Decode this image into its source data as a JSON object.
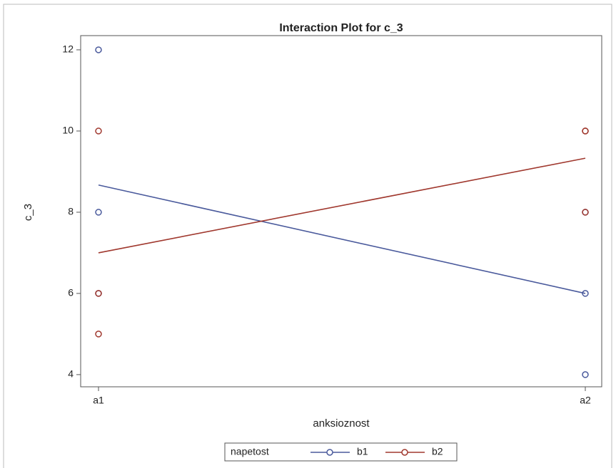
{
  "chart_data": {
    "type": "interaction",
    "title": "Interaction Plot for c_3",
    "x_label": "anksioznost",
    "y_label": "c_3",
    "categories": [
      "a1",
      "a2"
    ],
    "series": [
      {
        "name": "b1",
        "color": "#4a5a9c",
        "values": [
          8.67,
          6
        ],
        "observations": [
          [
            12,
            8,
            6
          ],
          [
            8,
            6,
            4
          ]
        ]
      },
      {
        "name": "b2",
        "color": "#a0382e",
        "values": [
          7,
          9.33
        ],
        "observations": [
          [
            10,
            6,
            5
          ],
          [
            10,
            10,
            8
          ]
        ]
      }
    ],
    "legend_title": "napetost",
    "legend": "bottom",
    "ylim": [
      3.7,
      12.35
    ],
    "yticks": [
      4,
      6,
      8,
      10,
      12
    ],
    "grid": false
  }
}
